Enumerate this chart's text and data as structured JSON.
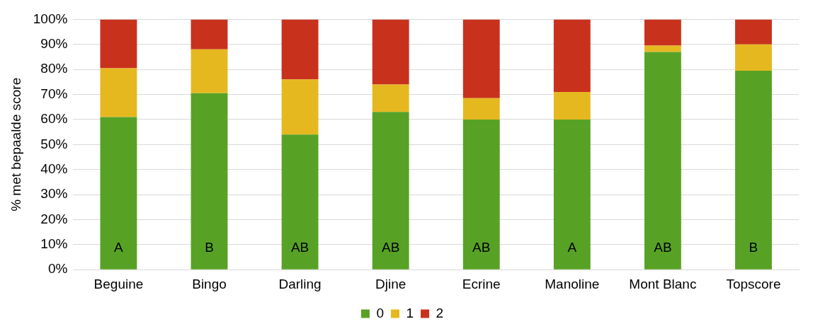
{
  "chart_data": {
    "type": "bar",
    "stacked": true,
    "ylabel": "% met bepaalde score",
    "categories": [
      "Beguine",
      "Bingo",
      "Darling",
      "Djine",
      "Ecrine",
      "Manoline",
      "Mont Blanc",
      "Topscore"
    ],
    "series": [
      {
        "name": "0",
        "color": "#57a225",
        "values": [
          61,
          70.5,
          54,
          63,
          60,
          60,
          87,
          79.5
        ]
      },
      {
        "name": "1",
        "color": "#e6b820",
        "values": [
          19.5,
          17.5,
          22,
          11,
          8.5,
          11,
          2.5,
          10.5
        ]
      },
      {
        "name": "2",
        "color": "#c8321d",
        "values": [
          19.5,
          12,
          24,
          26,
          31.5,
          29,
          10.5,
          10
        ]
      }
    ],
    "ylim": [
      0,
      100
    ],
    "yticks": [
      {
        "value": 0,
        "label": "0%"
      },
      {
        "value": 10,
        "label": "10%"
      },
      {
        "value": 20,
        "label": "20%"
      },
      {
        "value": 30,
        "label": "30%"
      },
      {
        "value": 40,
        "label": "40%"
      },
      {
        "value": 50,
        "label": "50%"
      },
      {
        "value": 60,
        "label": "60%"
      },
      {
        "value": 70,
        "label": "70%"
      },
      {
        "value": 80,
        "label": "80%"
      },
      {
        "value": 90,
        "label": "90%"
      },
      {
        "value": 100,
        "label": "100%"
      }
    ],
    "grid": "y",
    "legend": "bottom",
    "annotations": [
      "A",
      "B",
      "AB",
      "AB",
      "AB",
      "A",
      "AB",
      "B"
    ]
  }
}
